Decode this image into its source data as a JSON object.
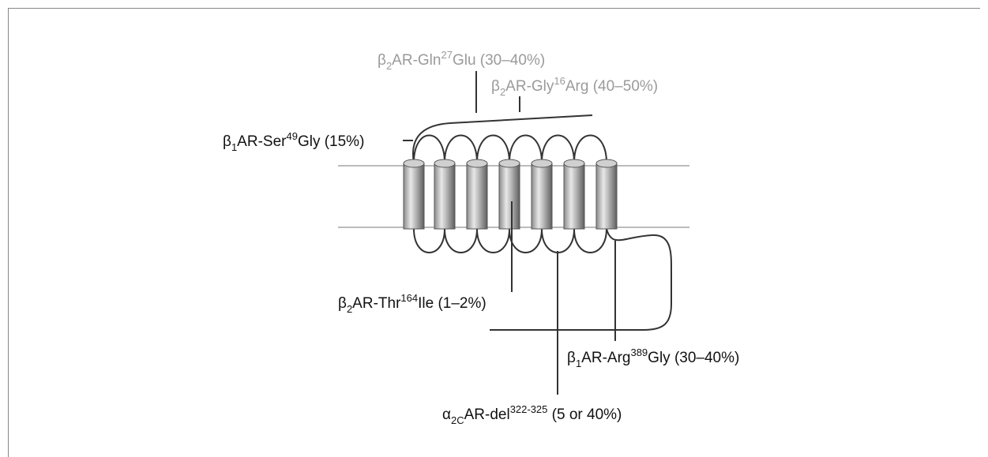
{
  "labels": [
    {
      "a": "β",
      "sub": "2",
      "b": "AR-Gln",
      "sup": "27",
      "c": "Glu (30–40%)"
    },
    {
      "a": "β",
      "sub": "2",
      "b": "AR-Gly",
      "sup": "16",
      "c": "Arg (40–50%)"
    },
    {
      "a": "β",
      "sub": "1",
      "b": "AR-Ser",
      "sup": "49",
      "c": "Gly (15%)"
    },
    {
      "a": "β",
      "sub": "2",
      "b": "AR-Thr",
      "sup": "164",
      "c": "Ile (1–2%)"
    },
    {
      "a": "β",
      "sub": "1",
      "b": "AR-Arg",
      "sup": "389",
      "c": "Gly (30–40%)"
    },
    {
      "a": "α",
      "sub": "2C",
      "b": "AR-del",
      "sup": "322-325",
      "c": " (5 or 40%)"
    }
  ]
}
